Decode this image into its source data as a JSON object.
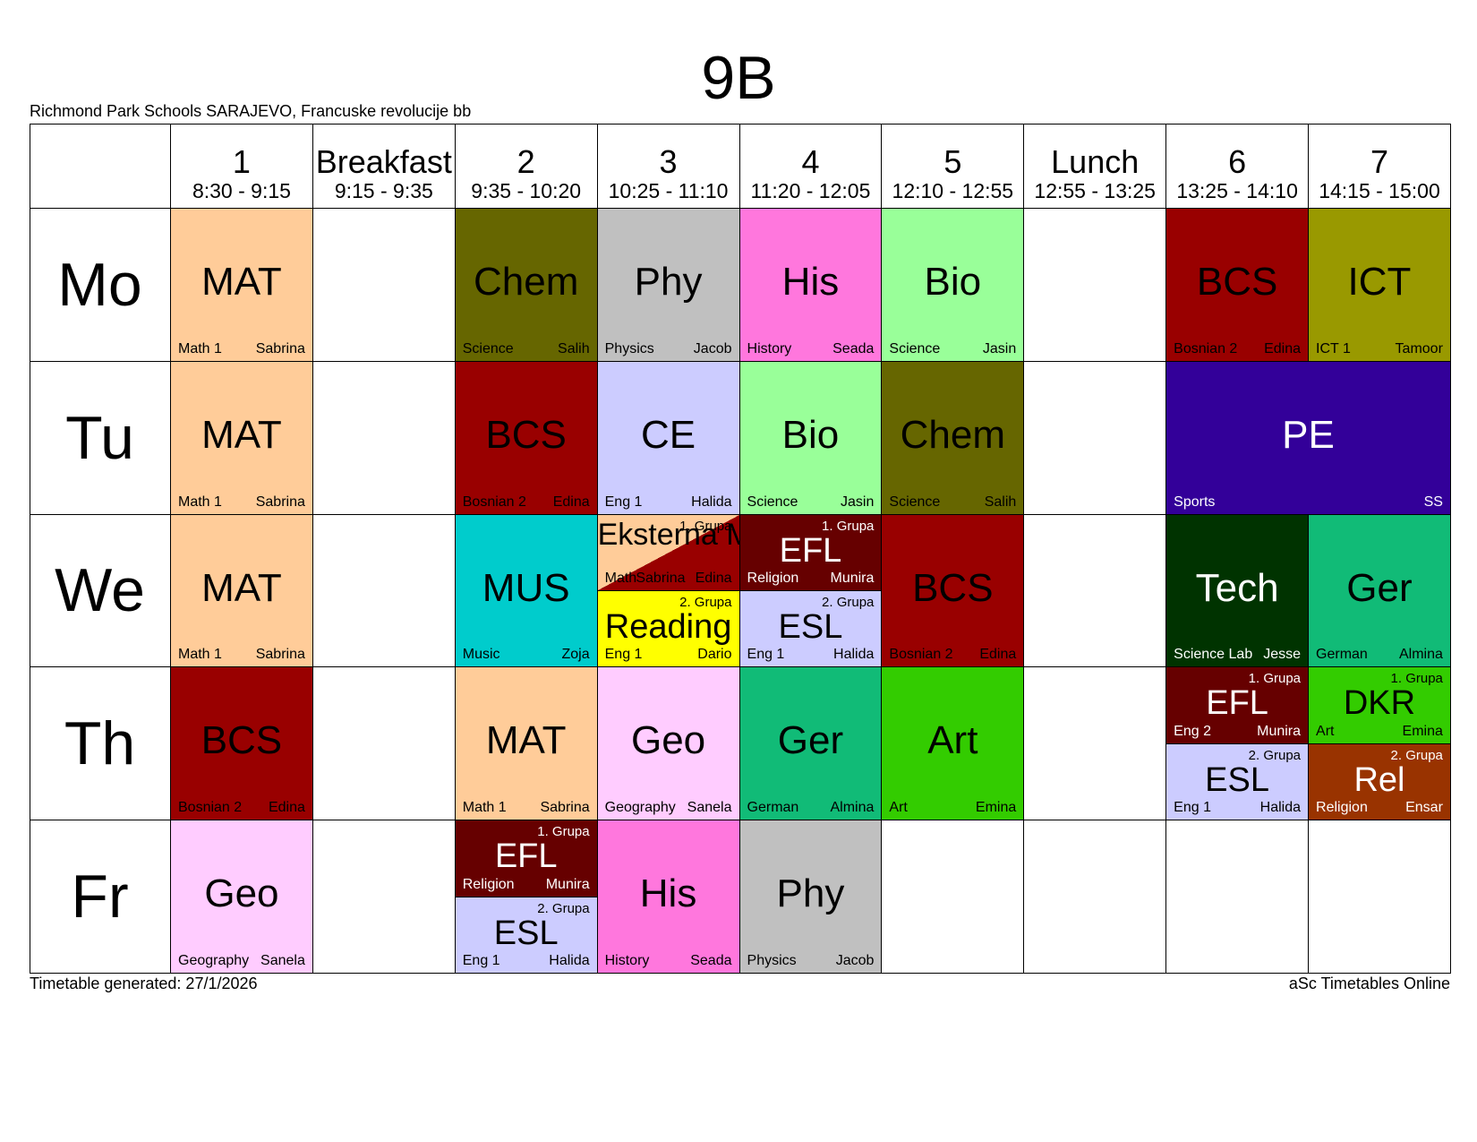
{
  "page": {
    "title": "9B",
    "school": "Richmond Park Schools SARAJEVO, Francuske revolucije bb",
    "generated": "Timetable generated: 27/1/2026",
    "software": "aSc Timetables Online"
  },
  "periods": [
    {
      "label": "1",
      "time": "8:30 - 9:15"
    },
    {
      "label": "Breakfast",
      "time": "9:15 - 9:35"
    },
    {
      "label": "2",
      "time": "9:35 - 10:20"
    },
    {
      "label": "3",
      "time": "10:25 - 11:10"
    },
    {
      "label": "4",
      "time": "11:20 - 12:05"
    },
    {
      "label": "5",
      "time": "12:10 - 12:55"
    },
    {
      "label": "Lunch",
      "time": "12:55 - 13:25"
    },
    {
      "label": "6",
      "time": "13:25 - 14:10"
    },
    {
      "label": "7",
      "time": "14:15 - 15:00"
    }
  ],
  "days": [
    "Mo",
    "Tu",
    "We",
    "Th",
    "Fr"
  ],
  "lessons": [
    {
      "day": 0,
      "col": 0,
      "subject": "MAT",
      "class": "Math 1",
      "teacher": "Sabrina",
      "color": "#ffcc99"
    },
    {
      "day": 0,
      "col": 2,
      "subject": "Chem",
      "class": "Science",
      "teacher": "Salih",
      "color": "#666600"
    },
    {
      "day": 0,
      "col": 3,
      "subject": "Phy",
      "class": "Physics",
      "teacher": "Jacob",
      "color": "#c0c0c0"
    },
    {
      "day": 0,
      "col": 4,
      "subject": "His",
      "class": "History",
      "teacher": "Seada",
      "color": "#ff77dd"
    },
    {
      "day": 0,
      "col": 5,
      "subject": "Bio",
      "class": "Science",
      "teacher": "Jasin",
      "color": "#99ff99"
    },
    {
      "day": 0,
      "col": 7,
      "subject": "BCS",
      "class": "Bosnian 2",
      "teacher": "Edina",
      "color": "#990000"
    },
    {
      "day": 0,
      "col": 8,
      "subject": "ICT",
      "class": "ICT 1",
      "teacher": "Tamoor",
      "color": "#999900"
    },
    {
      "day": 1,
      "col": 0,
      "subject": "MAT",
      "class": "Math 1",
      "teacher": "Sabrina",
      "color": "#ffcc99"
    },
    {
      "day": 1,
      "col": 2,
      "subject": "BCS",
      "class": "Bosnian 2",
      "teacher": "Edina",
      "color": "#990000"
    },
    {
      "day": 1,
      "col": 3,
      "subject": "CE",
      "class": "Eng 1",
      "teacher": "Halida",
      "color": "#ccccff"
    },
    {
      "day": 1,
      "col": 4,
      "subject": "Bio",
      "class": "Science",
      "teacher": "Jasin",
      "color": "#99ff99"
    },
    {
      "day": 1,
      "col": 5,
      "subject": "Chem",
      "class": "Science",
      "teacher": "Salih",
      "color": "#666600"
    },
    {
      "day": 1,
      "col": 7,
      "span": 2,
      "subject": "PE",
      "class": "Sports",
      "teacher": "SS",
      "color": "#330099",
      "white": true
    },
    {
      "day": 2,
      "col": 0,
      "subject": "MAT",
      "class": "Math 1",
      "teacher": "Sabrina",
      "color": "#ffcc99"
    },
    {
      "day": 2,
      "col": 2,
      "subject": "MUS",
      "class": "Music",
      "teacher": "Zoja",
      "color": "#00cccc"
    },
    {
      "day": 2,
      "col": 3,
      "half": 0,
      "subject": "Eksterna M",
      "group": "1. Grupa",
      "class": "Math",
      "teacher": "Sabrina",
      "extra_teacher": "Edina",
      "color": "#ffcc99",
      "color2": "#990000",
      "diag": true
    },
    {
      "day": 2,
      "col": 3,
      "half": 1,
      "subject": "Reading",
      "group": "2. Grupa",
      "class": "Eng 1",
      "teacher": "Dario",
      "color": "#ffff00"
    },
    {
      "day": 2,
      "col": 4,
      "half": 0,
      "subject": "EFL",
      "group": "1. Grupa",
      "class": "Religion",
      "teacher": "Munira",
      "color": "#660000",
      "white": true
    },
    {
      "day": 2,
      "col": 4,
      "half": 1,
      "subject": "ESL",
      "group": "2. Grupa",
      "class": "Eng 1",
      "teacher": "Halida",
      "color": "#ccccff"
    },
    {
      "day": 2,
      "col": 5,
      "subject": "BCS",
      "class": "Bosnian 2",
      "teacher": "Edina",
      "color": "#990000"
    },
    {
      "day": 2,
      "col": 7,
      "subject": "Tech",
      "class": "Science Lab",
      "teacher": "Jesse",
      "color": "#003300",
      "white": true
    },
    {
      "day": 2,
      "col": 8,
      "subject": "Ger",
      "class": "German",
      "teacher": "Almina",
      "color": "#11bb77"
    },
    {
      "day": 3,
      "col": 0,
      "subject": "BCS",
      "class": "Bosnian 2",
      "teacher": "Edina",
      "color": "#990000"
    },
    {
      "day": 3,
      "col": 2,
      "subject": "MAT",
      "class": "Math 1",
      "teacher": "Sabrina",
      "color": "#ffcc99"
    },
    {
      "day": 3,
      "col": 3,
      "subject": "Geo",
      "class": "Geography",
      "teacher": "Sanela",
      "color": "#ffccff"
    },
    {
      "day": 3,
      "col": 4,
      "subject": "Ger",
      "class": "German",
      "teacher": "Almina",
      "color": "#11bb77"
    },
    {
      "day": 3,
      "col": 5,
      "subject": "Art",
      "class": "Art",
      "teacher": "Emina",
      "color": "#33cc00"
    },
    {
      "day": 3,
      "col": 7,
      "half": 0,
      "subject": "EFL",
      "group": "1. Grupa",
      "class": "Eng 2",
      "teacher": "Munira",
      "color": "#660000",
      "white": true
    },
    {
      "day": 3,
      "col": 7,
      "half": 1,
      "subject": "ESL",
      "group": "2. Grupa",
      "class": "Eng 1",
      "teacher": "Halida",
      "color": "#ccccff"
    },
    {
      "day": 3,
      "col": 8,
      "half": 0,
      "subject": "DKR",
      "group": "1. Grupa",
      "class": "Art",
      "teacher": "Emina",
      "color": "#33cc00"
    },
    {
      "day": 3,
      "col": 8,
      "half": 1,
      "subject": "Rel",
      "group": "2. Grupa",
      "class": "Religion",
      "teacher": "Ensar",
      "color": "#993300",
      "white": true
    },
    {
      "day": 4,
      "col": 0,
      "subject": "Geo",
      "class": "Geography",
      "teacher": "Sanela",
      "color": "#ffccff"
    },
    {
      "day": 4,
      "col": 2,
      "half": 0,
      "subject": "EFL",
      "group": "1. Grupa",
      "class": "Religion",
      "teacher": "Munira",
      "color": "#660000",
      "white": true
    },
    {
      "day": 4,
      "col": 2,
      "half": 1,
      "subject": "ESL",
      "group": "2. Grupa",
      "class": "Eng 1",
      "teacher": "Halida",
      "color": "#ccccff"
    },
    {
      "day": 4,
      "col": 3,
      "subject": "His",
      "class": "History",
      "teacher": "Seada",
      "color": "#ff77dd"
    },
    {
      "day": 4,
      "col": 4,
      "subject": "Phy",
      "class": "Physics",
      "teacher": "Jacob",
      "color": "#c0c0c0"
    }
  ]
}
